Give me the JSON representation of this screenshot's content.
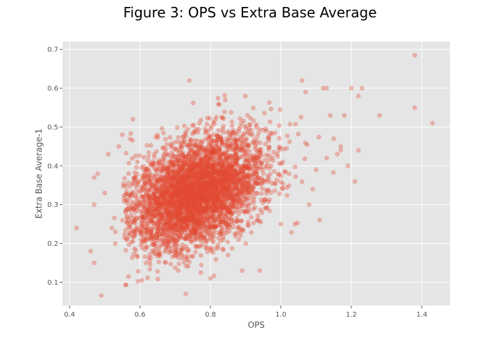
{
  "chart_data": {
    "type": "scatter",
    "title": "Figure 3: OPS vs Extra Base Average",
    "xlabel": "OPS",
    "ylabel": "Extra Base Average-1",
    "xlim": [
      0.38,
      1.48
    ],
    "ylim": [
      0.04,
      0.72
    ],
    "xticks": [
      0.4,
      0.6,
      0.8,
      1.0,
      1.2,
      1.4
    ],
    "xtick_labels": [
      "0.4",
      "0.6",
      "0.8",
      "1.0",
      "1.2",
      "1.4"
    ],
    "yticks": [
      0.1,
      0.2,
      0.3,
      0.4,
      0.5,
      0.6,
      0.7
    ],
    "ytick_labels": [
      "0.1",
      "0.2",
      "0.3",
      "0.4",
      "0.5",
      "0.6",
      "0.7"
    ],
    "grid": true,
    "style": {
      "background": "#e5e5e5",
      "grid_color": "#ffffff",
      "marker_color": "#e24a33",
      "marker_alpha": 0.35
    },
    "cloud": {
      "n_points": 4000,
      "center": [
        0.76,
        0.33
      ],
      "sd_x": 0.095,
      "sd_y": 0.075,
      "correlation": 0.4
    },
    "points": [
      [
        0.42,
        0.24
      ],
      [
        0.46,
        0.18
      ],
      [
        0.47,
        0.15
      ],
      [
        0.49,
        0.066
      ],
      [
        0.47,
        0.3
      ],
      [
        0.48,
        0.38
      ],
      [
        0.47,
        0.37
      ],
      [
        0.51,
        0.43
      ],
      [
        0.54,
        0.45
      ],
      [
        0.55,
        0.48
      ],
      [
        0.56,
        0.093
      ],
      [
        0.58,
        0.52
      ],
      [
        0.74,
        0.62
      ],
      [
        0.73,
        0.07
      ],
      [
        0.8,
        0.11
      ],
      [
        0.89,
        0.13
      ],
      [
        0.94,
        0.13
      ],
      [
        1.0,
        0.25
      ],
      [
        1.04,
        0.25
      ],
      [
        1.06,
        0.62
      ],
      [
        1.07,
        0.59
      ],
      [
        1.11,
        0.26
      ],
      [
        1.12,
        0.6
      ],
      [
        1.13,
        0.6
      ],
      [
        1.2,
        0.6
      ],
      [
        1.21,
        0.36
      ],
      [
        1.22,
        0.44
      ],
      [
        1.23,
        0.6
      ],
      [
        1.22,
        0.58
      ],
      [
        1.28,
        0.53
      ],
      [
        1.38,
        0.685
      ],
      [
        1.38,
        0.55
      ],
      [
        1.43,
        0.51
      ],
      [
        1.18,
        0.53
      ],
      [
        1.14,
        0.53
      ],
      [
        1.15,
        0.47
      ],
      [
        1.17,
        0.45
      ],
      [
        1.17,
        0.44
      ],
      [
        1.16,
        0.43
      ],
      [
        1.19,
        0.4
      ],
      [
        1.13,
        0.42
      ],
      [
        1.1,
        0.39
      ],
      [
        1.08,
        0.3
      ],
      [
        1.09,
        0.34
      ],
      [
        0.9,
        0.2
      ],
      [
        0.88,
        0.21
      ],
      [
        0.85,
        0.17
      ],
      [
        0.52,
        0.24
      ],
      [
        0.53,
        0.23
      ],
      [
        0.5,
        0.33
      ],
      [
        0.53,
        0.2
      ],
      [
        0.55,
        0.26
      ]
    ]
  }
}
